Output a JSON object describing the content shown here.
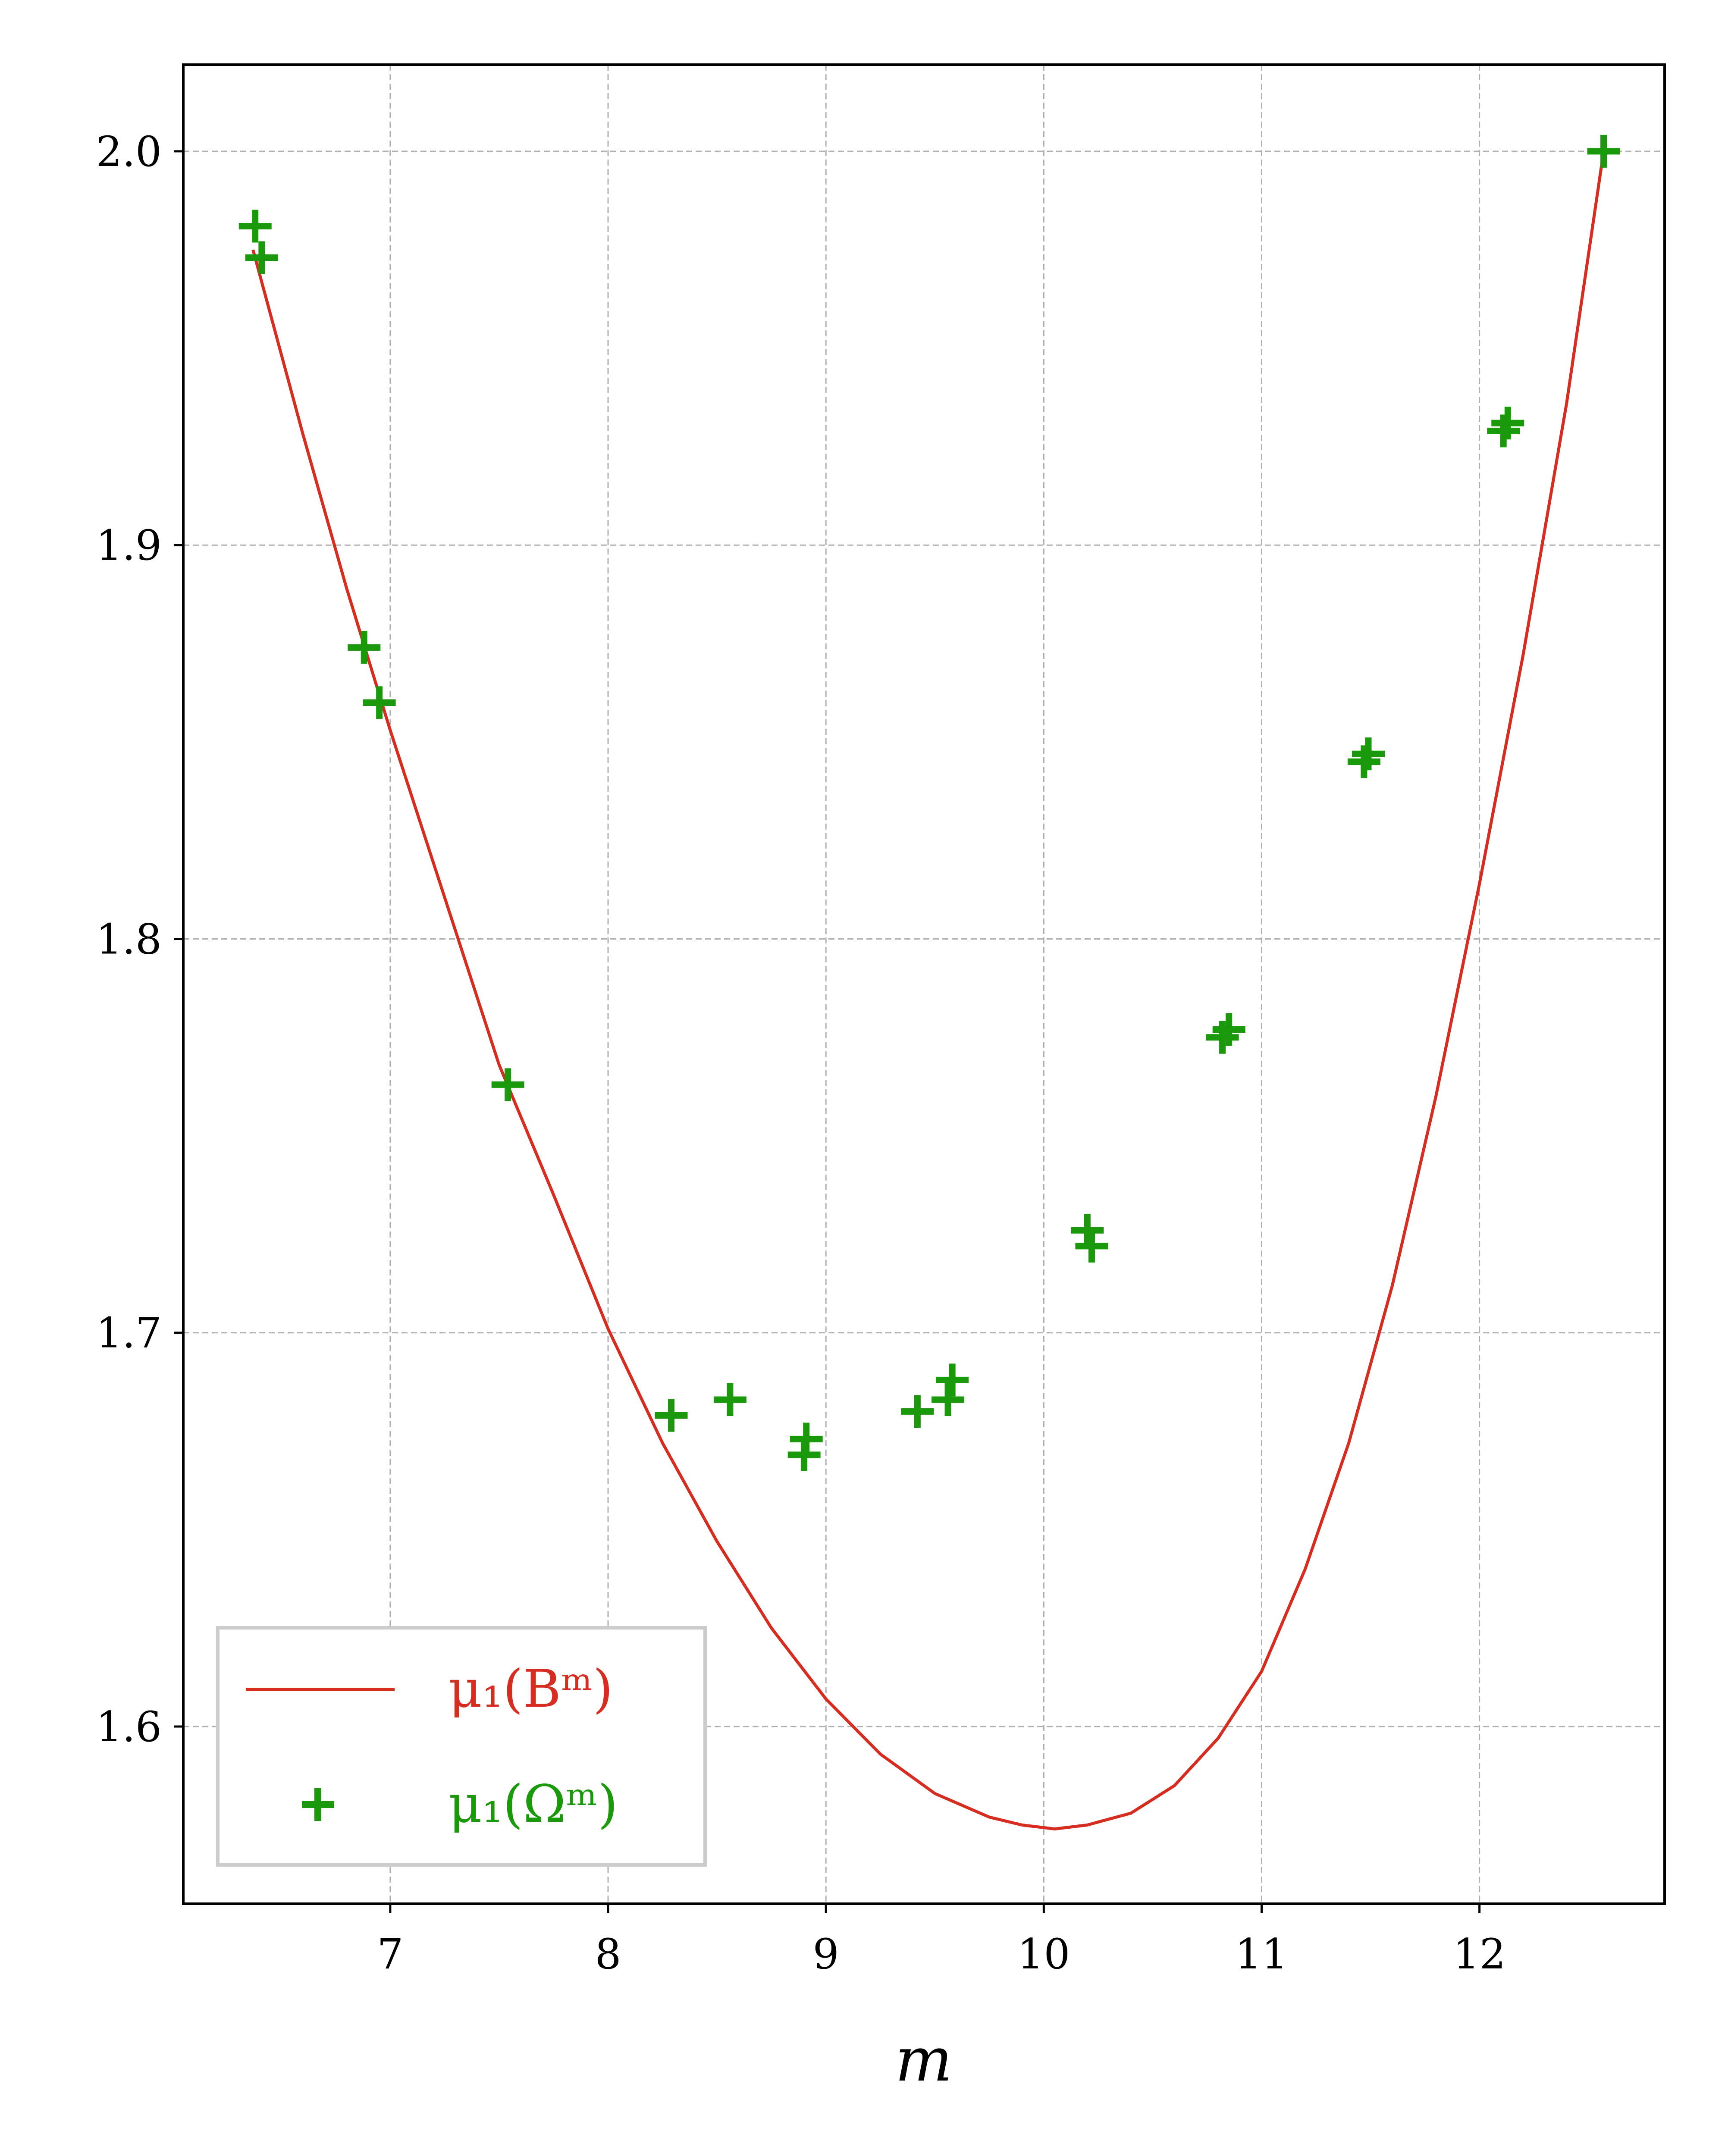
{
  "chart_data": {
    "type": "line+scatter",
    "title": "",
    "xlabel": "m",
    "ylabel": "",
    "xlim": [
      6.05,
      12.85
    ],
    "ylim": [
      1.555,
      2.022
    ],
    "x_ticks": [
      7,
      8,
      9,
      10,
      11,
      12
    ],
    "y_ticks": [
      1.6,
      1.7,
      1.8,
      1.9,
      2.0
    ],
    "x_tick_labels": [
      "7",
      "8",
      "9",
      "10",
      "11",
      "12"
    ],
    "y_tick_labels": [
      "1.6",
      "1.7",
      "1.8",
      "1.9",
      "2.0"
    ],
    "grid": true,
    "legend_position": "lower-left",
    "series": [
      {
        "name": "μ₁(Bᵐ)",
        "kind": "line",
        "color": "#d62d20",
        "x": [
          6.37,
          6.6,
          6.8,
          7.0,
          7.2,
          7.5,
          7.75,
          8.0,
          8.25,
          8.5,
          8.75,
          9.0,
          9.25,
          9.5,
          9.75,
          9.9,
          10.05,
          10.2,
          10.4,
          10.6,
          10.8,
          11.0,
          11.2,
          11.4,
          11.6,
          11.8,
          12.0,
          12.2,
          12.4,
          12.57
        ],
        "y": [
          1.975,
          1.928,
          1.889,
          1.853,
          1.819,
          1.768,
          1.735,
          1.701,
          1.672,
          1.647,
          1.625,
          1.607,
          1.593,
          1.583,
          1.577,
          1.575,
          1.574,
          1.575,
          1.578,
          1.585,
          1.597,
          1.614,
          1.64,
          1.672,
          1.712,
          1.76,
          1.814,
          1.872,
          1.936,
          2.0
        ]
      },
      {
        "name": "μ₁(Ωᵐ)",
        "kind": "scatter",
        "marker": "+",
        "color": "#1a9a0a",
        "x": [
          6.38,
          6.41,
          6.88,
          6.95,
          7.54,
          8.29,
          8.56,
          8.9,
          8.91,
          9.42,
          9.56,
          9.58,
          10.2,
          10.22,
          10.82,
          10.85,
          11.47,
          11.49,
          12.11,
          12.13,
          12.57
        ],
        "y": [
          1.981,
          1.973,
          1.874,
          1.86,
          1.763,
          1.679,
          1.683,
          1.669,
          1.673,
          1.68,
          1.683,
          1.688,
          1.726,
          1.722,
          1.775,
          1.777,
          1.845,
          1.847,
          1.929,
          1.931,
          2.0
        ]
      }
    ]
  },
  "legend": {
    "items": [
      {
        "label": "μ₁(Bᵐ)",
        "color": "#d62d20",
        "marker": "line"
      },
      {
        "label": "μ₁(Ωᵐ)",
        "color": "#1a9a0a",
        "marker": "+"
      }
    ]
  }
}
